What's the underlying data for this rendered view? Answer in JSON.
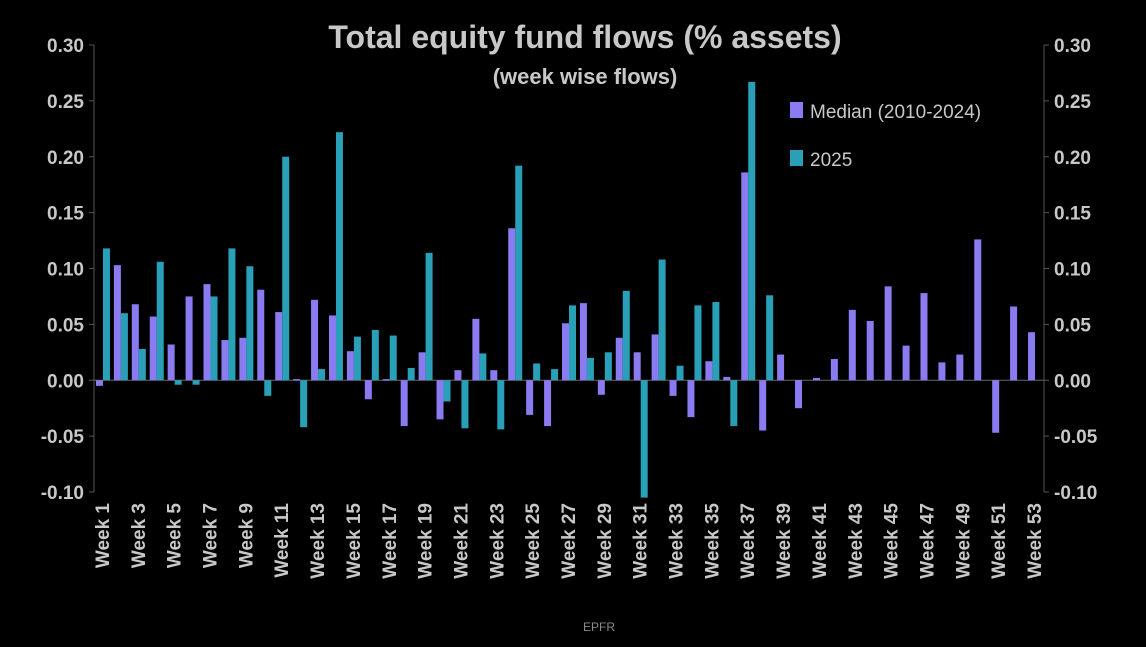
{
  "chart_data": {
    "type": "bar",
    "title": "Total equity fund flows (% assets)",
    "subtitle": "(week wise flows)",
    "source": "EPFR",
    "ylim": [
      -0.1,
      0.3
    ],
    "yticks": [
      "0.30",
      "0.25",
      "0.20",
      "0.15",
      "0.10",
      "0.05",
      "0.00",
      "-0.05",
      "-0.10"
    ],
    "ytick_values": [
      0.3,
      0.25,
      0.2,
      0.15,
      0.1,
      0.05,
      0.0,
      -0.05,
      -0.1
    ],
    "categories": [
      "Week 1",
      "Week 2",
      "Week 3",
      "Week 4",
      "Week 5",
      "Week 6",
      "Week 7",
      "Week 8",
      "Week 9",
      "Week 10",
      "Week 11",
      "Week 12",
      "Week 13",
      "Week 14",
      "Week 15",
      "Week 16",
      "Week 17",
      "Week 18",
      "Week 19",
      "Week 20",
      "Week 21",
      "Week 22",
      "Week 23",
      "Week 24",
      "Week 25",
      "Week 26",
      "Week 27",
      "Week 28",
      "Week 29",
      "Week 30",
      "Week 31",
      "Week 32",
      "Week 33",
      "Week 34",
      "Week 35",
      "Week 36",
      "Week 37",
      "Week 38",
      "Week 39",
      "Week 40",
      "Week 41",
      "Week 42",
      "Week 43",
      "Week 44",
      "Week 45",
      "Week 46",
      "Week 47",
      "Week 48",
      "Week 49",
      "Week 50",
      "Week 51",
      "Week 52",
      "Week 53"
    ],
    "x_tick_labels": [
      "Week 1",
      "Week 3",
      "Week 5",
      "Week 7",
      "Week 9",
      "Week 11",
      "Week 13",
      "Week 15",
      "Week 17",
      "Week 19",
      "Week 21",
      "Week 23",
      "Week 25",
      "Week 27",
      "Week 29",
      "Week 31",
      "Week 33",
      "Week 35",
      "Week 37",
      "Week 39",
      "Week 41",
      "Week 43",
      "Week 45",
      "Week 47",
      "Week 49",
      "Week 51",
      "Week 53"
    ],
    "legend_position": "top-right",
    "grid": false,
    "series": [
      {
        "name": "Median (2010-2024)",
        "color": "#8a7cf0",
        "values": [
          -0.005,
          0.103,
          0.068,
          0.057,
          0.032,
          0.075,
          0.086,
          0.036,
          0.038,
          0.081,
          0.061,
          0.001,
          0.072,
          0.058,
          0.026,
          -0.017,
          0.001,
          -0.041,
          0.025,
          -0.035,
          0.009,
          0.055,
          0.009,
          0.136,
          -0.031,
          -0.041,
          0.051,
          0.069,
          -0.013,
          0.038,
          0.025,
          0.041,
          -0.014,
          -0.033,
          0.017,
          0.003,
          0.186,
          -0.045,
          0.023,
          -0.025,
          0.002,
          0.019,
          0.063,
          0.053,
          0.084,
          0.031,
          0.078,
          0.016,
          0.023,
          0.126,
          -0.047,
          0.066,
          0.043
        ]
      },
      {
        "name": "2025",
        "color": "#2a9fb8",
        "values": [
          0.118,
          0.06,
          0.028,
          0.106,
          -0.004,
          -0.004,
          0.075,
          0.118,
          0.102,
          -0.014,
          0.2,
          -0.042,
          0.01,
          0.222,
          0.039,
          0.045,
          0.04,
          0.011,
          0.114,
          -0.019,
          -0.043,
          0.024,
          -0.044,
          0.192,
          0.015,
          0.01,
          0.067,
          0.02,
          0.025,
          0.08,
          -0.105,
          0.108,
          0.013,
          0.067,
          0.07,
          -0.041,
          0.267,
          0.076,
          null,
          null,
          null,
          null,
          null,
          null,
          null,
          null,
          null,
          null,
          null,
          null,
          null,
          null,
          null
        ]
      }
    ]
  }
}
